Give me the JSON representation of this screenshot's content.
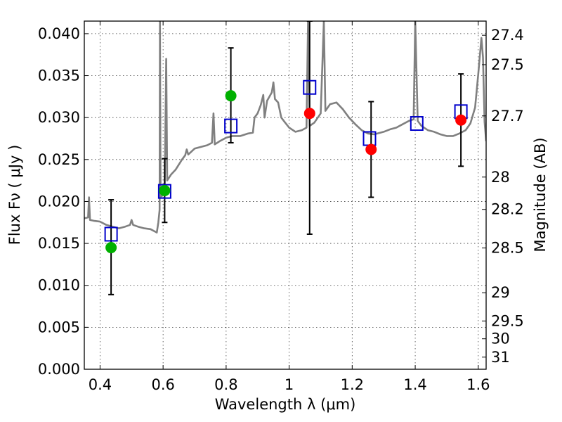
{
  "chart_data": {
    "type": "scatter",
    "title": "",
    "xlabel": "Wavelength  λ (μm)",
    "ylabel": "Flux  Fν  ( μJy )",
    "y2label": "Magnitude (AB)",
    "xlim": [
      0.35,
      1.625
    ],
    "ylim": [
      0.0,
      0.0415
    ],
    "grid": true,
    "x_ticks": [
      0.4,
      0.6,
      0.8,
      1.0,
      1.2,
      1.4,
      1.6
    ],
    "x_tick_labels": [
      "0.4",
      "0.6",
      "0.8",
      "1",
      "1.2",
      "1.4",
      "1.6"
    ],
    "y_ticks": [
      0.0,
      0.005,
      0.01,
      0.015,
      0.02,
      0.025,
      0.03,
      0.035,
      0.04
    ],
    "y_tick_labels": [
      "0.000",
      "0.005",
      "0.010",
      "0.015",
      "0.020",
      "0.025",
      "0.030",
      "0.035",
      "0.040"
    ],
    "y2_ticks": [
      {
        "label": "27.4",
        "mag": 27.4
      },
      {
        "label": "27.5",
        "mag": 27.5
      },
      {
        "label": "27.7",
        "mag": 27.7
      },
      {
        "label": "28",
        "mag": 28.0
      },
      {
        "label": "28.2",
        "mag": 28.2
      },
      {
        "label": "28.5",
        "mag": 28.5
      },
      {
        "label": "29",
        "mag": 29.0
      },
      {
        "label": "29.5",
        "mag": 29.5
      },
      {
        "label": "30",
        "mag": 30.0
      },
      {
        "label": "31",
        "mag": 31.0
      }
    ],
    "series": [
      {
        "kind": "line",
        "color": "#808080",
        "points": [
          [
            0.35,
            0.018
          ],
          [
            0.362,
            0.0181
          ],
          [
            0.365,
            0.0205
          ],
          [
            0.368,
            0.0178
          ],
          [
            0.38,
            0.0177
          ],
          [
            0.4,
            0.0176
          ],
          [
            0.42,
            0.0172
          ],
          [
            0.44,
            0.017
          ],
          [
            0.46,
            0.0168
          ],
          [
            0.48,
            0.017
          ],
          [
            0.495,
            0.0172
          ],
          [
            0.5,
            0.0178
          ],
          [
            0.505,
            0.0172
          ],
          [
            0.52,
            0.017
          ],
          [
            0.54,
            0.0168
          ],
          [
            0.56,
            0.0167
          ],
          [
            0.575,
            0.0164
          ],
          [
            0.58,
            0.0163
          ],
          [
            0.585,
            0.0175
          ],
          [
            0.589,
            0.019
          ],
          [
            0.59,
            0.0415
          ],
          [
            0.592,
            0.0205
          ],
          [
            0.6,
            0.0208
          ],
          [
            0.605,
            0.021
          ],
          [
            0.61,
            0.037
          ],
          [
            0.613,
            0.0225
          ],
          [
            0.625,
            0.0232
          ],
          [
            0.64,
            0.0238
          ],
          [
            0.66,
            0.025
          ],
          [
            0.67,
            0.0255
          ],
          [
            0.675,
            0.0262
          ],
          [
            0.68,
            0.0256
          ],
          [
            0.7,
            0.0263
          ],
          [
            0.72,
            0.0265
          ],
          [
            0.74,
            0.0267
          ],
          [
            0.755,
            0.027
          ],
          [
            0.76,
            0.0305
          ],
          [
            0.764,
            0.0268
          ],
          [
            0.78,
            0.0272
          ],
          [
            0.8,
            0.0276
          ],
          [
            0.82,
            0.0278
          ],
          [
            0.845,
            0.0278
          ],
          [
            0.87,
            0.0281
          ],
          [
            0.885,
            0.0282
          ],
          [
            0.89,
            0.03
          ],
          [
            0.9,
            0.0305
          ],
          [
            0.91,
            0.0315
          ],
          [
            0.918,
            0.0327
          ],
          [
            0.922,
            0.03
          ],
          [
            0.93,
            0.032
          ],
          [
            0.945,
            0.033
          ],
          [
            0.95,
            0.0342
          ],
          [
            0.955,
            0.0322
          ],
          [
            0.965,
            0.0318
          ],
          [
            0.975,
            0.03
          ],
          [
            0.985,
            0.0295
          ],
          [
            1.0,
            0.0288
          ],
          [
            1.02,
            0.0283
          ],
          [
            1.04,
            0.0285
          ],
          [
            1.055,
            0.0288
          ],
          [
            1.06,
            0.0415
          ],
          [
            1.065,
            0.029
          ],
          [
            1.08,
            0.0294
          ],
          [
            1.1,
            0.0305
          ],
          [
            1.11,
            0.0415
          ],
          [
            1.115,
            0.0308
          ],
          [
            1.13,
            0.0316
          ],
          [
            1.15,
            0.0318
          ],
          [
            1.17,
            0.031
          ],
          [
            1.19,
            0.03
          ],
          [
            1.21,
            0.0292
          ],
          [
            1.23,
            0.0285
          ],
          [
            1.25,
            0.0281
          ],
          [
            1.27,
            0.028
          ],
          [
            1.3,
            0.0283
          ],
          [
            1.32,
            0.0286
          ],
          [
            1.34,
            0.0288
          ],
          [
            1.36,
            0.0292
          ],
          [
            1.38,
            0.0296
          ],
          [
            1.395,
            0.0298
          ],
          [
            1.4,
            0.0415
          ],
          [
            1.408,
            0.0296
          ],
          [
            1.42,
            0.029
          ],
          [
            1.44,
            0.0285
          ],
          [
            1.46,
            0.0283
          ],
          [
            1.48,
            0.028
          ],
          [
            1.5,
            0.0278
          ],
          [
            1.52,
            0.0278
          ],
          [
            1.54,
            0.0281
          ],
          [
            1.56,
            0.0285
          ],
          [
            1.575,
            0.0293
          ],
          [
            1.59,
            0.0312
          ],
          [
            1.6,
            0.0352
          ],
          [
            1.61,
            0.0395
          ],
          [
            1.615,
            0.0372
          ],
          [
            1.62,
            0.0295
          ],
          [
            1.625,
            0.0272
          ]
        ]
      },
      {
        "kind": "squares",
        "color": "#0000cc",
        "points": [
          [
            0.435,
            0.0161
          ],
          [
            0.605,
            0.0212
          ],
          [
            0.815,
            0.029
          ],
          [
            1.065,
            0.0336
          ],
          [
            1.255,
            0.0275
          ],
          [
            1.405,
            0.0293
          ],
          [
            1.545,
            0.0307
          ]
        ]
      },
      {
        "kind": "points",
        "color": "#00b000",
        "points": [
          [
            0.435,
            0.0145
          ],
          [
            0.605,
            0.0213
          ],
          [
            0.815,
            0.0326
          ]
        ]
      },
      {
        "kind": "points",
        "color": "#ff0000",
        "points": [
          [
            1.065,
            0.0305
          ],
          [
            1.26,
            0.0262
          ],
          [
            1.545,
            0.0297
          ]
        ]
      },
      {
        "kind": "errorbars",
        "color": "#000000",
        "points": [
          {
            "x": 0.435,
            "low": 0.0089,
            "high": 0.0202
          },
          {
            "x": 0.605,
            "low": 0.0175,
            "high": 0.0251
          },
          {
            "x": 0.815,
            "low": 0.027,
            "high": 0.0383
          },
          {
            "x": 1.065,
            "low": 0.0161,
            "high": 0.0415
          },
          {
            "x": 1.26,
            "low": 0.0205,
            "high": 0.0319
          },
          {
            "x": 1.545,
            "low": 0.0242,
            "high": 0.0352
          }
        ]
      }
    ]
  }
}
